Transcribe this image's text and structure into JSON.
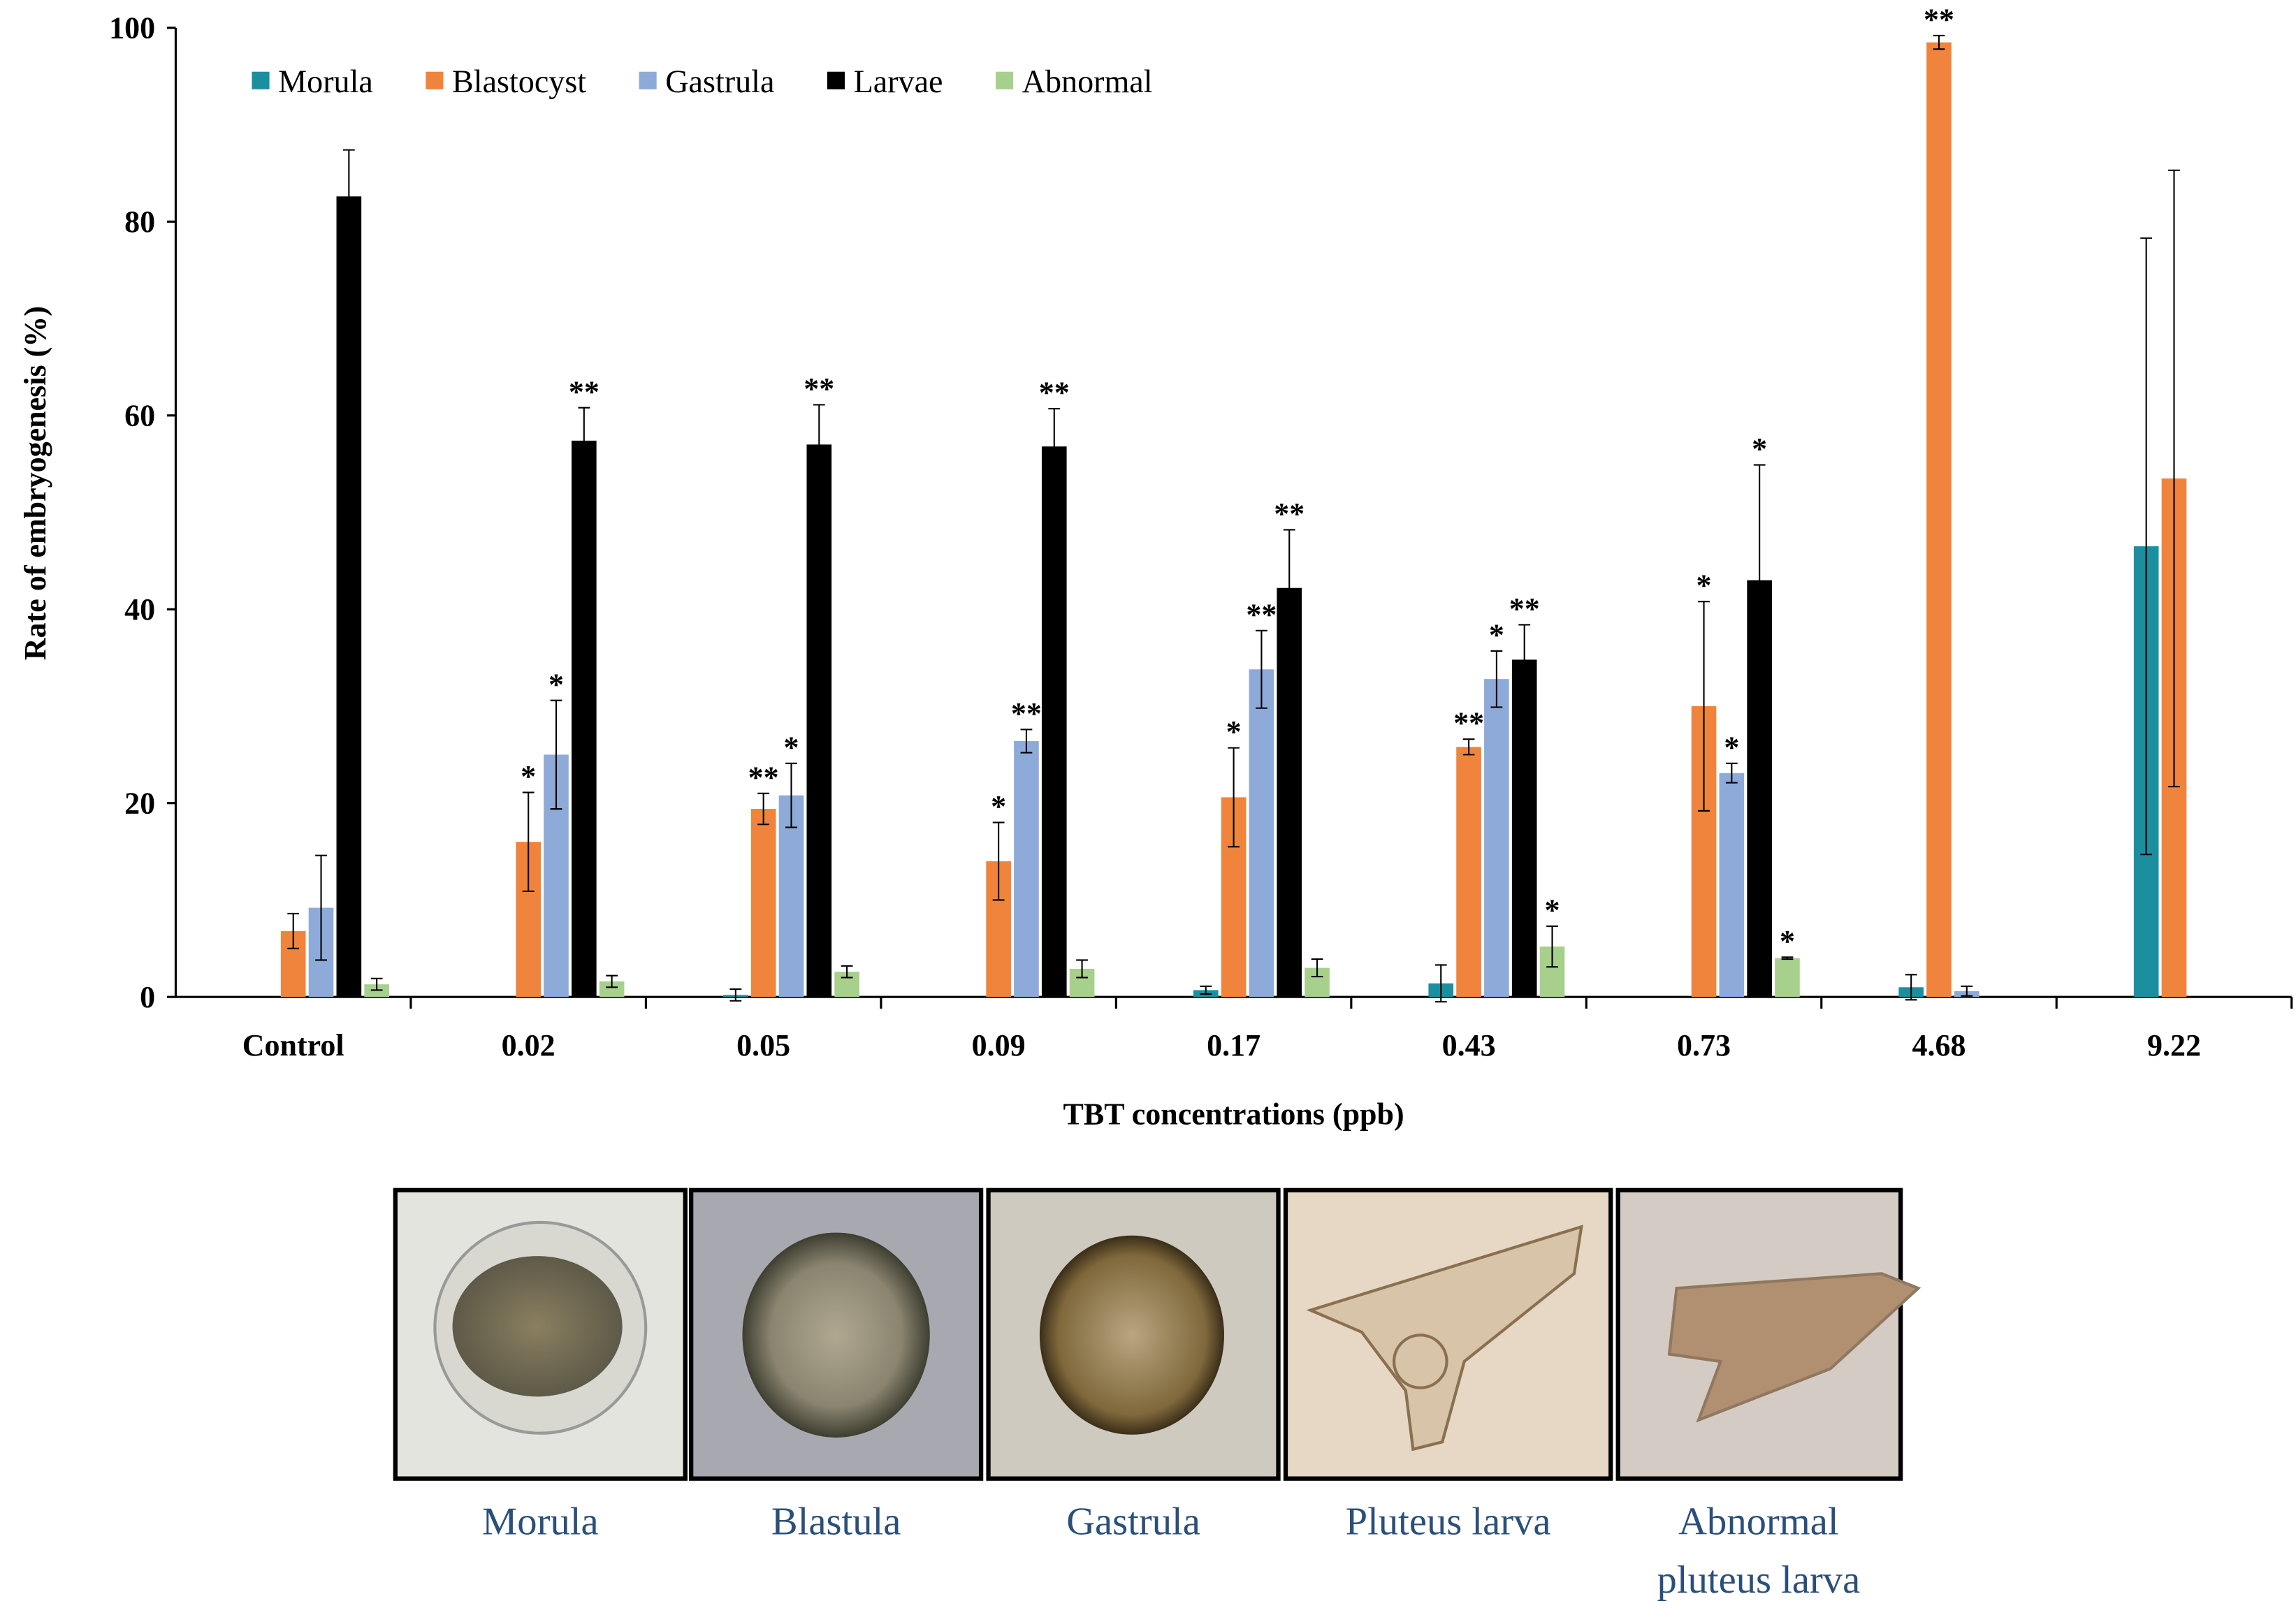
{
  "chart_data": {
    "type": "bar",
    "x_label": "TBT concentrations (ppb)",
    "y_label": "Rate of embryogenesis (%)",
    "categories": [
      "Control",
      "0.02",
      "0.05",
      "0.09",
      "0.17",
      "0.43",
      "0.73",
      "4.68",
      "9.22"
    ],
    "series": [
      {
        "name": "Morula",
        "color": "#1b8fa0",
        "values": [
          0,
          0,
          0.2,
          0,
          0.7,
          1.4,
          0,
          1,
          46.5
        ],
        "errors": [
          null,
          null,
          0.6,
          null,
          0.4,
          1.9,
          null,
          1.3,
          31.8
        ],
        "significance": [
          null,
          null,
          null,
          null,
          null,
          null,
          null,
          null,
          null
        ]
      },
      {
        "name": "Blastocyst",
        "color": "#f0843c",
        "values": [
          6.8,
          16,
          19.4,
          14,
          20.6,
          25.8,
          30,
          98.5,
          53.5
        ],
        "errors": [
          1.8,
          5.1,
          1.6,
          4,
          5.1,
          0.8,
          10.8,
          0.7,
          31.8
        ],
        "significance": [
          null,
          "*",
          "**",
          "*",
          "*",
          "**",
          "*",
          "**",
          null
        ]
      },
      {
        "name": "Gastrula",
        "color": "#8eaad8",
        "values": [
          9.2,
          25,
          20.8,
          26.4,
          33.8,
          32.8,
          23.1,
          0.6,
          0
        ],
        "errors": [
          5.4,
          5.6,
          3.3,
          1.2,
          4,
          2.9,
          1,
          0.5,
          null
        ],
        "significance": [
          null,
          "*",
          "*",
          "**",
          "**",
          "*",
          "*",
          null,
          null
        ]
      },
      {
        "name": "Larvae",
        "color": "#000000",
        "values": [
          82.6,
          57.4,
          57,
          56.8,
          42.2,
          34.8,
          43,
          0,
          0
        ],
        "errors": [
          4.8,
          3.4,
          4.1,
          3.9,
          6,
          3.6,
          11.9,
          null,
          null
        ],
        "significance": [
          null,
          "**",
          "**",
          "**",
          "**",
          "**",
          "*",
          null,
          null
        ]
      },
      {
        "name": "Abnormal",
        "color": "#a8d08d",
        "values": [
          1.3,
          1.6,
          2.6,
          2.9,
          3,
          5.2,
          4,
          0,
          0
        ],
        "errors": [
          0.6,
          0.6,
          0.6,
          0.9,
          0.9,
          2.1,
          0.1,
          null,
          null
        ],
        "significance": [
          null,
          null,
          null,
          null,
          null,
          "*",
          "*",
          null,
          null
        ]
      }
    ],
    "ylim": [
      0,
      100
    ],
    "yticks": [
      0,
      20,
      40,
      60,
      80,
      100
    ],
    "grid": false,
    "legend": "top-left"
  },
  "panels": [
    {
      "caption": [
        "Morula"
      ]
    },
    {
      "caption": [
        "Blastula"
      ]
    },
    {
      "caption": [
        "Gastrula"
      ]
    },
    {
      "caption": [
        "Pluteus larva"
      ]
    },
    {
      "caption": [
        "Abnormal",
        "pluteus larva"
      ]
    }
  ]
}
